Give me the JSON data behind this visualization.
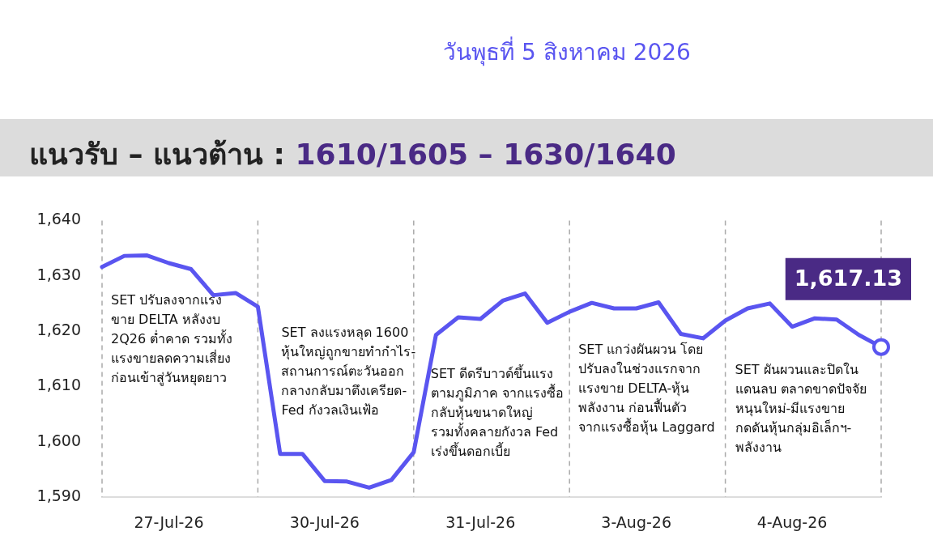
{
  "chart_data": {
    "type": "line",
    "title": "แนวรับ – แนวต้าน : 1610/1605 – 1630/1640",
    "subtitle": "วันพุธที่ 5 สิงหาคม 2026",
    "categories": [
      null,
      null,
      null,
      "27-Jul-26",
      null,
      null,
      null,
      null,
      null,
      null,
      "30-Jul-26",
      null,
      null,
      null,
      null,
      null,
      null,
      "31-Jul-26",
      null,
      null,
      null,
      null,
      null,
      null,
      "3-Aug-26",
      null,
      null,
      null,
      null,
      null,
      null,
      "4-Aug-26",
      null,
      null,
      null,
      null
    ],
    "series": [
      {
        "color": "#5a55f0",
        "values": [
          1631.6,
          1633.6,
          1633.7,
          1632.3,
          1631.2,
          1626.5,
          1626.9,
          1624.4,
          1597.8,
          1597.8,
          1592.9,
          1592.8,
          1591.7,
          1593.1,
          1598.1,
          1619.3,
          1622.5,
          1622.2,
          1625.5,
          1626.8,
          1621.5,
          1623.5,
          1625.1,
          1624.1,
          1624.1,
          1625.2,
          1619.5,
          1618.7,
          1621.9,
          1624.1,
          1625.0,
          1620.8,
          1622.3,
          1622.1,
          1619.3,
          1617.13
        ]
      },
      {
        "type": "scatter",
        "marker": "circle",
        "color": "#ffffff",
        "values": [
          null,
          null,
          null,
          null,
          null,
          null,
          null,
          null,
          null,
          null,
          null,
          null,
          null,
          null,
          null,
          null,
          null,
          null,
          null,
          null,
          null,
          null,
          null,
          null,
          null,
          null,
          null,
          null,
          null,
          null,
          null,
          null,
          null,
          null,
          null,
          1617.13
        ],
        "value_labels": [
          null,
          null,
          null,
          null,
          null,
          null,
          null,
          null,
          null,
          null,
          null,
          null,
          null,
          null,
          null,
          null,
          null,
          null,
          null,
          null,
          null,
          null,
          null,
          null,
          null,
          null,
          null,
          null,
          null,
          null,
          null,
          null,
          null,
          null,
          null,
          "1,617.13"
        ]
      }
    ],
    "grid": "x",
    "ylim": [
      1590,
      1640
    ],
    "yticks": [
      {
        "value": 1590,
        "label": "1,590"
      },
      {
        "value": 1600,
        "label": "1,600"
      },
      {
        "value": 1610,
        "label": "1,610"
      },
      {
        "value": 1620,
        "label": "1,620"
      },
      {
        "value": 1630,
        "label": "1,630"
      },
      {
        "value": 1640,
        "label": "1,640"
      }
    ],
    "annotations": [
      "SET ปรับลงจากแรง\nขาย DELTA หลังงบ\n2Q26 ต่ำคาด รวมทั้ง\nแรงขายลดความเสี่ยง\nก่อนเข้าสู่วันหยุดยาว",
      "SET ลงแรงหลุด 1600\nหุ้นใหญ่ถูกขายทำกำไร-\nสถานการณ์ตะวันออก\nกลางกลับมาตึงเครียด-\nFed กังวลเงินเฟ้อ",
      "SET ดีดรีบาวด์ขึ้นแรง\nตามภูมิภาค จากแรงซื้อ\nกลับหุ้นขนาดใหญ่\nรวมทั้งคลายกังวล Fed\nเร่งขึ้นดอกเบี้ย",
      "SET แกว่งผันผวน โดย\nปรับลงในช่วงแรกจาก\nแรงขาย DELTA-หุ้น\nพลังงาน ก่อนฟื้นตัว\nจากแรงซื้อหุ้น Laggard",
      "SET ผันผวนและปิดใน\nแดนลบ ตลาดขาดปัจจัย\nหนุนใหม่-มีแรงขาย\nกดดันหุ้นกลุ่มอิเล็กฯ-\nพลังงาน"
    ]
  }
}
